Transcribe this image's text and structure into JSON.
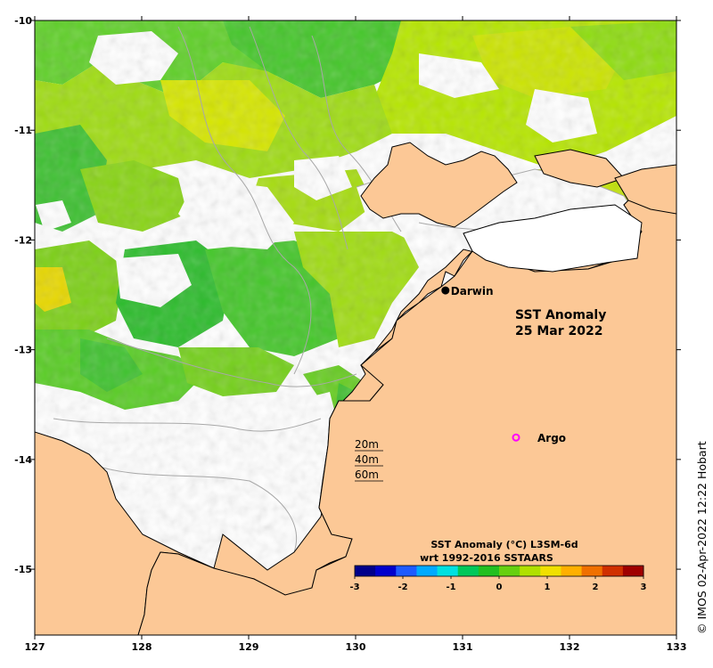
{
  "title_line1": "SST Anomaly",
  "title_line2": "25 Mar 2022",
  "credit": "© IMOS 02-Apr-2022 12:22 Hobart",
  "axes": {
    "x_ticks": [
      "127",
      "128",
      "129",
      "130",
      "131",
      "132",
      "133"
    ],
    "y_ticks": [
      "-10",
      "-11",
      "-12",
      "-13",
      "-14",
      "-15"
    ],
    "lon_range": [
      127,
      133
    ],
    "lat_range": [
      -15.6,
      -10
    ]
  },
  "markers": {
    "darwin": {
      "label": "Darwin",
      "lon": 130.84,
      "lat": -12.46
    },
    "argo": {
      "label": "Argo",
      "lon": 131.5,
      "lat": -13.8
    }
  },
  "depth_legend": [
    "20m",
    "40m",
    "60m"
  ],
  "colorbar": {
    "title_line1": "SST Anomaly (°C) L3SM-6d",
    "title_line2": "wrt 1992-2016 SSTAARS",
    "ticks": [
      "-3",
      "-2",
      "-1",
      "0",
      "1",
      "2",
      "3"
    ],
    "range": [
      -3,
      3
    ],
    "colors": [
      "#00008b",
      "#0000cd",
      "#1e5bff",
      "#00aaff",
      "#00e0e0",
      "#00c85a",
      "#22c020",
      "#66d010",
      "#b0e000",
      "#f0e000",
      "#ffb000",
      "#f07000",
      "#d03000",
      "#a00000"
    ]
  },
  "colors": {
    "land": "#fcc896",
    "coast": "#000000",
    "isobath": "#a8a8a8",
    "argo": "#ff00ff"
  }
}
